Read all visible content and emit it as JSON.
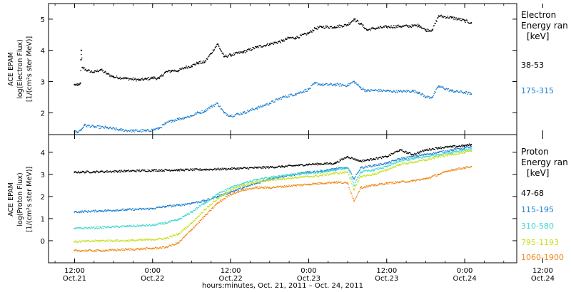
{
  "chart_data": [
    {
      "type": "scatter",
      "title": "",
      "ylabel_lines": [
        "ACE EPAM",
        "log(Electron Flux)",
        "[1/(cm²s ster MeV)]"
      ],
      "legend_title": [
        "Electron",
        "Energy ran",
        "[keV]"
      ],
      "ylim": [
        1.3,
        5.5
      ],
      "yticks": [
        2,
        3,
        4,
        5
      ],
      "series": [
        {
          "name": "38-53",
          "color": "#000000",
          "points": [
            [
              0,
              2.9
            ],
            [
              0.5,
              2.88
            ],
            [
              0.9,
              2.95
            ],
            [
              1.0,
              3.7
            ],
            [
              1.05,
              4.0
            ],
            [
              1.2,
              3.45
            ],
            [
              2,
              3.35
            ],
            [
              3,
              3.3
            ],
            [
              4,
              3.38
            ],
            [
              5,
              3.25
            ],
            [
              6,
              3.15
            ],
            [
              8,
              3.1
            ],
            [
              10,
              3.05
            ],
            [
              11,
              3.08
            ],
            [
              12,
              3.12
            ],
            [
              13,
              3.1
            ],
            [
              14,
              3.3
            ],
            [
              15,
              3.35
            ],
            [
              16,
              3.35
            ],
            [
              17,
              3.45
            ],
            [
              18,
              3.5
            ],
            [
              19,
              3.6
            ],
            [
              20,
              3.62
            ],
            [
              21,
              3.9
            ],
            [
              22,
              4.2
            ],
            [
              23,
              3.8
            ],
            [
              24,
              3.85
            ],
            [
              26,
              3.95
            ],
            [
              28,
              4.1
            ],
            [
              30,
              4.2
            ],
            [
              32,
              4.3
            ],
            [
              33,
              4.4
            ],
            [
              34,
              4.4
            ],
            [
              36,
              4.55
            ],
            [
              37,
              4.7
            ],
            [
              38,
              4.75
            ],
            [
              40,
              4.75
            ],
            [
              42,
              4.82
            ],
            [
              43,
              5.0
            ],
            [
              44,
              4.85
            ],
            [
              45,
              4.65
            ],
            [
              46,
              4.7
            ],
            [
              48,
              4.75
            ],
            [
              50,
              4.77
            ],
            [
              52,
              4.78
            ],
            [
              53,
              4.8
            ],
            [
              54,
              4.65
            ],
            [
              55,
              4.65
            ],
            [
              56,
              5.1
            ],
            [
              58,
              5.05
            ],
            [
              60,
              4.95
            ],
            [
              61,
              4.88
            ]
          ]
        },
        {
          "name": "175-315",
          "color": "#1E7FD0",
          "points": [
            [
              0,
              1.4
            ],
            [
              0.5,
              1.38
            ],
            [
              1.0,
              1.45
            ],
            [
              1.5,
              1.6
            ],
            [
              3,
              1.55
            ],
            [
              5,
              1.52
            ],
            [
              7,
              1.45
            ],
            [
              9,
              1.42
            ],
            [
              11,
              1.42
            ],
            [
              12,
              1.45
            ],
            [
              13,
              1.5
            ],
            [
              14,
              1.65
            ],
            [
              15,
              1.75
            ],
            [
              16,
              1.8
            ],
            [
              17,
              1.85
            ],
            [
              18,
              1.9
            ],
            [
              19,
              2.0
            ],
            [
              20,
              2.05
            ],
            [
              21,
              2.2
            ],
            [
              22,
              2.3
            ],
            [
              23,
              2.0
            ],
            [
              24,
              1.9
            ],
            [
              26,
              2.0
            ],
            [
              28,
              2.15
            ],
            [
              30,
              2.3
            ],
            [
              32,
              2.5
            ],
            [
              34,
              2.6
            ],
            [
              36,
              2.75
            ],
            [
              37,
              2.95
            ],
            [
              38,
              2.9
            ],
            [
              40,
              2.9
            ],
            [
              42,
              2.88
            ],
            [
              43,
              3.0
            ],
            [
              44,
              2.8
            ],
            [
              45,
              2.7
            ],
            [
              46,
              2.72
            ],
            [
              48,
              2.7
            ],
            [
              50,
              2.68
            ],
            [
              52,
              2.7
            ],
            [
              53,
              2.65
            ],
            [
              54,
              2.5
            ],
            [
              55,
              2.5
            ],
            [
              56,
              2.85
            ],
            [
              58,
              2.7
            ],
            [
              60,
              2.65
            ],
            [
              61,
              2.6
            ]
          ]
        }
      ]
    },
    {
      "type": "scatter",
      "title": "",
      "ylabel_lines": [
        "ACE EPAM",
        "log(Proton Flux)",
        "[1/(cm²s ster MeV)]"
      ],
      "legend_title": [
        "Proton",
        "Energy ran",
        "[keV]"
      ],
      "ylim": [
        -1.0,
        4.8
      ],
      "yticks": [
        0,
        1,
        2,
        3,
        4
      ],
      "series": [
        {
          "name": "47-68",
          "color": "#000000",
          "points": [
            [
              0,
              3.1
            ],
            [
              4,
              3.12
            ],
            [
              8,
              3.15
            ],
            [
              12,
              3.18
            ],
            [
              16,
              3.2
            ],
            [
              20,
              3.22
            ],
            [
              24,
              3.25
            ],
            [
              28,
              3.3
            ],
            [
              32,
              3.35
            ],
            [
              36,
              3.45
            ],
            [
              40,
              3.5
            ],
            [
              42,
              3.8
            ],
            [
              44,
              3.6
            ],
            [
              46,
              3.7
            ],
            [
              48,
              3.8
            ],
            [
              50,
              4.1
            ],
            [
              52,
              3.9
            ],
            [
              54,
              4.1
            ],
            [
              56,
              4.2
            ],
            [
              58,
              4.25
            ],
            [
              60,
              4.3
            ],
            [
              61,
              4.35
            ]
          ]
        },
        {
          "name": "115-195",
          "color": "#1E7FD0",
          "points": [
            [
              0,
              1.3
            ],
            [
              4,
              1.35
            ],
            [
              8,
              1.4
            ],
            [
              12,
              1.45
            ],
            [
              14,
              1.55
            ],
            [
              16,
              1.6
            ],
            [
              18,
              1.7
            ],
            [
              20,
              1.8
            ],
            [
              22,
              2.0
            ],
            [
              24,
              2.2
            ],
            [
              26,
              2.4
            ],
            [
              28,
              2.6
            ],
            [
              30,
              2.8
            ],
            [
              32,
              2.9
            ],
            [
              34,
              3.0
            ],
            [
              36,
              3.1
            ],
            [
              38,
              3.15
            ],
            [
              40,
              3.25
            ],
            [
              42,
              3.3
            ],
            [
              43,
              2.8
            ],
            [
              44,
              3.3
            ],
            [
              46,
              3.4
            ],
            [
              48,
              3.5
            ],
            [
              50,
              3.7
            ],
            [
              52,
              3.8
            ],
            [
              54,
              3.9
            ],
            [
              56,
              4.0
            ],
            [
              58,
              4.1
            ],
            [
              60,
              4.2
            ],
            [
              61,
              4.25
            ]
          ]
        },
        {
          "name": "310-580",
          "color": "#40D8D0",
          "points": [
            [
              0,
              0.55
            ],
            [
              4,
              0.6
            ],
            [
              8,
              0.65
            ],
            [
              12,
              0.7
            ],
            [
              14,
              0.8
            ],
            [
              16,
              0.95
            ],
            [
              18,
              1.3
            ],
            [
              20,
              1.7
            ],
            [
              22,
              2.1
            ],
            [
              24,
              2.4
            ],
            [
              26,
              2.6
            ],
            [
              28,
              2.75
            ],
            [
              30,
              2.85
            ],
            [
              32,
              2.95
            ],
            [
              34,
              3.0
            ],
            [
              36,
              3.05
            ],
            [
              38,
              3.1
            ],
            [
              40,
              3.2
            ],
            [
              42,
              3.3
            ],
            [
              43,
              2.5
            ],
            [
              44,
              3.1
            ],
            [
              46,
              3.2
            ],
            [
              48,
              3.35
            ],
            [
              50,
              3.6
            ],
            [
              52,
              3.7
            ],
            [
              54,
              3.8
            ],
            [
              56,
              3.9
            ],
            [
              58,
              4.0
            ],
            [
              60,
              4.1
            ],
            [
              61,
              4.15
            ]
          ]
        },
        {
          "name": "795-1193",
          "color": "#C8E020",
          "points": [
            [
              0,
              -0.05
            ],
            [
              4,
              0.0
            ],
            [
              8,
              0.0
            ],
            [
              12,
              0.05
            ],
            [
              14,
              0.1
            ],
            [
              16,
              0.3
            ],
            [
              18,
              0.8
            ],
            [
              20,
              1.4
            ],
            [
              22,
              1.9
            ],
            [
              24,
              2.3
            ],
            [
              26,
              2.5
            ],
            [
              28,
              2.65
            ],
            [
              30,
              2.75
            ],
            [
              32,
              2.8
            ],
            [
              34,
              2.85
            ],
            [
              36,
              2.9
            ],
            [
              38,
              2.95
            ],
            [
              40,
              3.05
            ],
            [
              42,
              3.1
            ],
            [
              43,
              2.3
            ],
            [
              44,
              2.9
            ],
            [
              46,
              3.0
            ],
            [
              48,
              3.2
            ],
            [
              50,
              3.45
            ],
            [
              52,
              3.55
            ],
            [
              54,
              3.65
            ],
            [
              56,
              3.8
            ],
            [
              58,
              3.9
            ],
            [
              60,
              4.0
            ],
            [
              61,
              4.05
            ]
          ]
        },
        {
          "name": "1060-1900",
          "color": "#F08A1C",
          "points": [
            [
              0,
              -0.45
            ],
            [
              4,
              -0.45
            ],
            [
              8,
              -0.4
            ],
            [
              12,
              -0.35
            ],
            [
              14,
              -0.3
            ],
            [
              16,
              -0.1
            ],
            [
              18,
              0.5
            ],
            [
              20,
              1.1
            ],
            [
              22,
              1.7
            ],
            [
              24,
              2.1
            ],
            [
              26,
              2.3
            ],
            [
              28,
              2.4
            ],
            [
              30,
              2.4
            ],
            [
              32,
              2.45
            ],
            [
              34,
              2.5
            ],
            [
              36,
              2.55
            ],
            [
              38,
              2.6
            ],
            [
              40,
              2.65
            ],
            [
              42,
              2.6
            ],
            [
              43,
              1.8
            ],
            [
              44,
              2.4
            ],
            [
              46,
              2.5
            ],
            [
              48,
              2.6
            ],
            [
              50,
              2.65
            ],
            [
              52,
              2.7
            ],
            [
              54,
              2.8
            ],
            [
              56,
              3.0
            ],
            [
              58,
              3.2
            ],
            [
              60,
              3.3
            ],
            [
              61,
              3.35
            ]
          ]
        }
      ]
    }
  ],
  "x_axis": {
    "xlim": [
      -4,
      68
    ],
    "ticks": [
      {
        "h": 0,
        "time": "12:00",
        "date": "Oct.21"
      },
      {
        "h": 12,
        "time": "0:00",
        "date": "Oct.22"
      },
      {
        "h": 24,
        "time": "12:00",
        "date": "Oct.22"
      },
      {
        "h": 36,
        "time": "0:00",
        "date": "Oct.23"
      },
      {
        "h": 48,
        "time": "12:00",
        "date": "Oct.23"
      },
      {
        "h": 60,
        "time": "0:00",
        "date": "Oct.24"
      },
      {
        "h": 72,
        "time": "12:00",
        "date": "Oct.24"
      }
    ],
    "xlabel": "hours:minutes, Oct. 21, 2011 – Oct. 24, 2011"
  }
}
